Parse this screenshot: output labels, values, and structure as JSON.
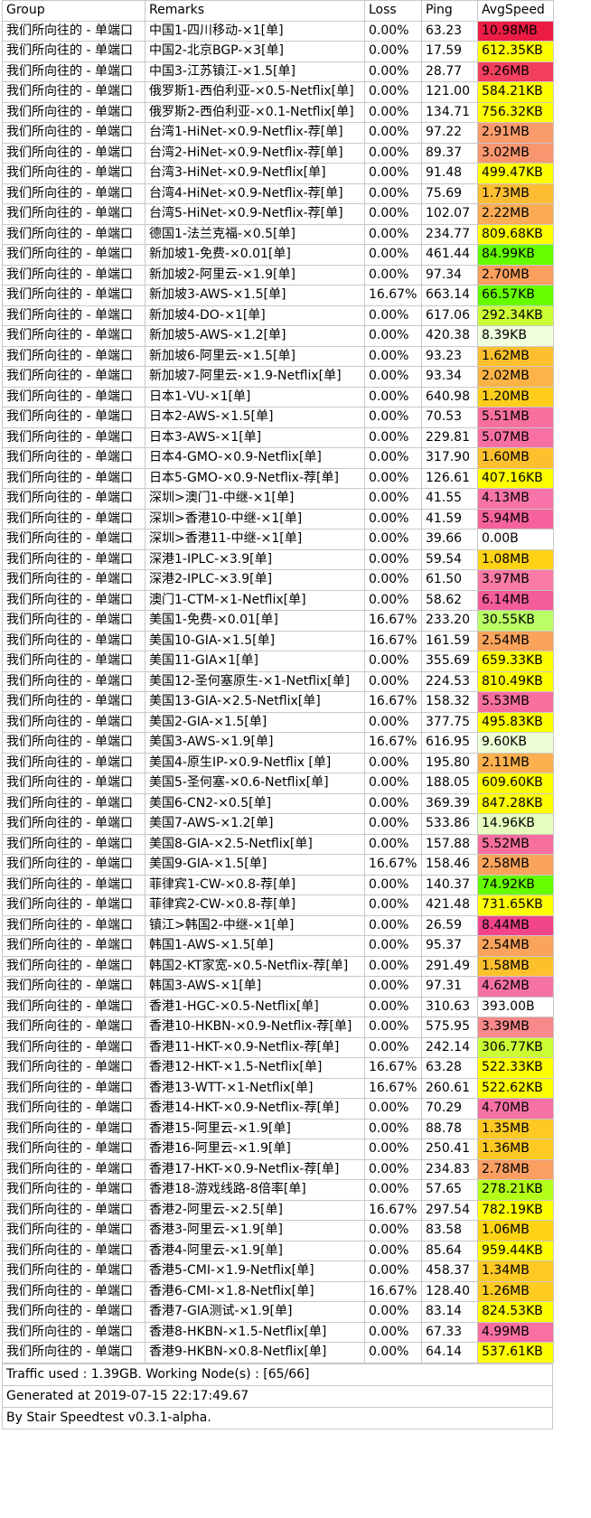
{
  "headers": {
    "group": "Group",
    "remarks": "Remarks",
    "loss": "Loss",
    "ping": "Ping",
    "speed": "AvgSpeed"
  },
  "group_name": "我们所向往的 - 单端口",
  "rows": [
    {
      "remarks": "中国1-四川移动-×1[单]",
      "loss": "0.00%",
      "ping": "63.23",
      "speed": "10.98MB",
      "color": "#ec1c44"
    },
    {
      "remarks": "中国2-北京BGP-×3[单]",
      "loss": "0.00%",
      "ping": "17.59",
      "speed": "612.35KB",
      "color": "#ffff00"
    },
    {
      "remarks": "中国3-江苏镇江-×1.5[单]",
      "loss": "0.00%",
      "ping": "28.77",
      "speed": "9.26MB",
      "color": "#f3405e"
    },
    {
      "remarks": "俄罗斯1-西伯利亚-×0.5-Netflix[单]",
      "loss": "0.00%",
      "ping": "121.00",
      "speed": "584.21KB",
      "color": "#ffff00"
    },
    {
      "remarks": "俄罗斯2-西伯利亚-×0.1-Netflix[单]",
      "loss": "0.00%",
      "ping": "134.71",
      "speed": "756.32KB",
      "color": "#ffff00"
    },
    {
      "remarks": "台湾1-HiNet-×0.9-Netflix-荐[单]",
      "loss": "0.00%",
      "ping": "97.22",
      "speed": "2.91MB",
      "color": "#fa9b6e"
    },
    {
      "remarks": "台湾2-HiNet-×0.9-Netflix-荐[单]",
      "loss": "0.00%",
      "ping": "89.37",
      "speed": "3.02MB",
      "color": "#f8966f"
    },
    {
      "remarks": "台湾3-HiNet-×0.9-Netflix[单]",
      "loss": "0.00%",
      "ping": "91.48",
      "speed": "499.47KB",
      "color": "#ffff00"
    },
    {
      "remarks": "台湾4-HiNet-×0.9-Netflix-荐[单]",
      "loss": "0.00%",
      "ping": "75.69",
      "speed": "1.73MB",
      "color": "#fdbd33"
    },
    {
      "remarks": "台湾5-HiNet-×0.9-Netflix-荐[单]",
      "loss": "0.00%",
      "ping": "102.07",
      "speed": "2.22MB",
      "color": "#fbac55"
    },
    {
      "remarks": "德国1-法兰克福-×0.5[单]",
      "loss": "0.00%",
      "ping": "234.77",
      "speed": "809.68KB",
      "color": "#ffff00"
    },
    {
      "remarks": "新加坡1-免费-×0.01[单]",
      "loss": "0.00%",
      "ping": "461.44",
      "speed": "84.99KB",
      "color": "#66ff00"
    },
    {
      "remarks": "新加坡2-阿里云-×1.9[单]",
      "loss": "0.00%",
      "ping": "97.34",
      "speed": "2.70MB",
      "color": "#faa05f"
    },
    {
      "remarks": "新加坡3-AWS-×1.5[单]",
      "loss": "16.67%",
      "ping": "663.14",
      "speed": "66.57KB",
      "color": "#66ff00"
    },
    {
      "remarks": "新加坡4-DO-×1[单]",
      "loss": "0.00%",
      "ping": "617.06",
      "speed": "292.34KB",
      "color": "#ccff33"
    },
    {
      "remarks": "新加坡5-AWS-×1.2[单]",
      "loss": "0.00%",
      "ping": "420.38",
      "speed": "8.39KB",
      "color": "#f0ffdd"
    },
    {
      "remarks": "新加坡6-阿里云-×1.5[单]",
      "loss": "0.00%",
      "ping": "93.23",
      "speed": "1.62MB",
      "color": "#fdbf2e"
    },
    {
      "remarks": "新加坡7-阿里云-×1.9-Netflix[单]",
      "loss": "0.00%",
      "ping": "93.34",
      "speed": "2.02MB",
      "color": "#fcb448"
    },
    {
      "remarks": "日本1-VU-×1[单]",
      "loss": "0.00%",
      "ping": "640.98",
      "speed": "1.20MB",
      "color": "#fecd1c"
    },
    {
      "remarks": "日本2-AWS-×1.5[单]",
      "loss": "0.00%",
      "ping": "70.53",
      "speed": "5.51MB",
      "color": "#f66f9e"
    },
    {
      "remarks": "日本3-AWS-×1[单]",
      "loss": "0.00%",
      "ping": "229.81",
      "speed": "5.07MB",
      "color": "#f770a1"
    },
    {
      "remarks": "日本4-GMO-×0.9-Netflix[单]",
      "loss": "0.00%",
      "ping": "317.90",
      "speed": "1.60MB",
      "color": "#fdbf2e"
    },
    {
      "remarks": "日本5-GMO-×0.9-Netflix-荐[单]",
      "loss": "0.00%",
      "ping": "126.61",
      "speed": "407.16KB",
      "color": "#ffff00"
    },
    {
      "remarks": "深圳>澳门1-中继-×1[单]",
      "loss": "0.00%",
      "ping": "41.55",
      "speed": "4.13MB",
      "color": "#f874a8"
    },
    {
      "remarks": "深圳>香港10-中继-×1[单]",
      "loss": "0.00%",
      "ping": "41.59",
      "speed": "5.94MB",
      "color": "#f5629c"
    },
    {
      "remarks": "深圳>香港11-中继-×1[单]",
      "loss": "0.00%",
      "ping": "39.66",
      "speed": "0.00B",
      "color": "#ffffff"
    },
    {
      "remarks": "深港1-IPLC-×3.9[单]",
      "loss": "0.00%",
      "ping": "59.54",
      "speed": "1.08MB",
      "color": "#fed316"
    },
    {
      "remarks": "深港2-IPLC-×3.9[单]",
      "loss": "0.00%",
      "ping": "61.50",
      "speed": "3.97MB",
      "color": "#f87ba5"
    },
    {
      "remarks": "澳门1-CTM-×1-Netflix[单]",
      "loss": "0.00%",
      "ping": "58.62",
      "speed": "6.14MB",
      "color": "#f45d99"
    },
    {
      "remarks": "美国1-免费-×0.01[单]",
      "loss": "16.67%",
      "ping": "233.20",
      "speed": "30.55KB",
      "color": "#bbff66"
    },
    {
      "remarks": "美国10-GIA-×1.5[单]",
      "loss": "16.67%",
      "ping": "161.59",
      "speed": "2.54MB",
      "color": "#faa35c"
    },
    {
      "remarks": "美国11-GIA×1[单]",
      "loss": "0.00%",
      "ping": "355.69",
      "speed": "659.33KB",
      "color": "#ffff00"
    },
    {
      "remarks": "美国12-圣何塞原生-×1-Netflix[单]",
      "loss": "0.00%",
      "ping": "224.53",
      "speed": "810.49KB",
      "color": "#ffff00"
    },
    {
      "remarks": "美国13-GIA-×2.5-Netflix[单]",
      "loss": "16.67%",
      "ping": "158.32",
      "speed": "5.53MB",
      "color": "#f66f9e"
    },
    {
      "remarks": "美国2-GIA-×1.5[单]",
      "loss": "0.00%",
      "ping": "377.75",
      "speed": "495.83KB",
      "color": "#ffff00"
    },
    {
      "remarks": "美国3-AWS-×1.9[单]",
      "loss": "16.67%",
      "ping": "616.95",
      "speed": "9.60KB",
      "color": "#eeffd6"
    },
    {
      "remarks": "美国4-原生IP-×0.9-Netflix [单]",
      "loss": "0.00%",
      "ping": "195.80",
      "speed": "2.11MB",
      "color": "#fcb04e"
    },
    {
      "remarks": "美国5-圣何塞-×0.6-Netflix[单]",
      "loss": "0.00%",
      "ping": "188.05",
      "speed": "609.60KB",
      "color": "#ffff00"
    },
    {
      "remarks": "美国6-CN2-×0.5[单]",
      "loss": "0.00%",
      "ping": "369.39",
      "speed": "847.28KB",
      "color": "#ffff00"
    },
    {
      "remarks": "美国7-AWS-×1.2[单]",
      "loss": "0.00%",
      "ping": "533.86",
      "speed": "14.96KB",
      "color": "#e6ffbf"
    },
    {
      "remarks": "美国8-GIA-×2.5-Netflix[单]",
      "loss": "0.00%",
      "ping": "157.88",
      "speed": "5.52MB",
      "color": "#f66f9e"
    },
    {
      "remarks": "美国9-GIA-×1.5[单]",
      "loss": "16.67%",
      "ping": "158.46",
      "speed": "2.58MB",
      "color": "#faa35c"
    },
    {
      "remarks": "菲律宾1-CW-×0.8-荐[单]",
      "loss": "0.00%",
      "ping": "140.37",
      "speed": "74.92KB",
      "color": "#66ff00"
    },
    {
      "remarks": "菲律宾2-CW-×0.8-荐[单]",
      "loss": "0.00%",
      "ping": "421.48",
      "speed": "731.65KB",
      "color": "#ffff00"
    },
    {
      "remarks": "镇江>韩国2-中继-×1[单]",
      "loss": "0.00%",
      "ping": "26.59",
      "speed": "8.44MB",
      "color": "#f2448a"
    },
    {
      "remarks": "韩国1-AWS-×1.5[单]",
      "loss": "0.00%",
      "ping": "95.37",
      "speed": "2.54MB",
      "color": "#faa35c"
    },
    {
      "remarks": "韩国2-KT家宽-×0.5-Netflix-荐[单]",
      "loss": "0.00%",
      "ping": "291.49",
      "speed": "1.58MB",
      "color": "#fdc02d"
    },
    {
      "remarks": "韩国3-AWS-×1[单]",
      "loss": "0.00%",
      "ping": "97.31",
      "speed": "4.62MB",
      "color": "#f772a4"
    },
    {
      "remarks": "香港1-HGC-×0.5-Netflix[单]",
      "loss": "0.00%",
      "ping": "310.63",
      "speed": "393.00B",
      "color": "#ffffff"
    },
    {
      "remarks": "香港10-HKBN-×0.9-Netflix-荐[单]",
      "loss": "0.00%",
      "ping": "575.95",
      "speed": "3.39MB",
      "color": "#f8888a"
    },
    {
      "remarks": "香港11-HKT-×0.9-Netflix-荐[单]",
      "loss": "0.00%",
      "ping": "242.14",
      "speed": "306.77KB",
      "color": "#ccff33"
    },
    {
      "remarks": "香港12-HKT-×1.5-Netflix[单]",
      "loss": "16.67%",
      "ping": "63.28",
      "speed": "522.33KB",
      "color": "#ffff00"
    },
    {
      "remarks": "香港13-WTT-×1-Netflix[单]",
      "loss": "16.67%",
      "ping": "260.61",
      "speed": "522.62KB",
      "color": "#ffff00"
    },
    {
      "remarks": "香港14-HKT-×0.9-Netflix-荐[单]",
      "loss": "0.00%",
      "ping": "70.29",
      "speed": "4.70MB",
      "color": "#f772a4"
    },
    {
      "remarks": "香港15-阿里云-×1.9[单]",
      "loss": "0.00%",
      "ping": "88.78",
      "speed": "1.35MB",
      "color": "#fec923"
    },
    {
      "remarks": "香港16-阿里云-×1.9[单]",
      "loss": "0.00%",
      "ping": "250.41",
      "speed": "1.36MB",
      "color": "#fec923"
    },
    {
      "remarks": "香港17-HKT-×0.9-Netflix-荐[单]",
      "loss": "0.00%",
      "ping": "234.83",
      "speed": "2.78MB",
      "color": "#fa9e62"
    },
    {
      "remarks": "香港18-游戏线路-8倍率[单]",
      "loss": "0.00%",
      "ping": "57.65",
      "speed": "278.21KB",
      "color": "#b3ff1a"
    },
    {
      "remarks": "香港2-阿里云-×2.5[单]",
      "loss": "16.67%",
      "ping": "297.54",
      "speed": "782.19KB",
      "color": "#ffff00"
    },
    {
      "remarks": "香港3-阿里云-×1.9[单]",
      "loss": "0.00%",
      "ping": "83.58",
      "speed": "1.06MB",
      "color": "#fed316"
    },
    {
      "remarks": "香港4-阿里云-×1.9[单]",
      "loss": "0.00%",
      "ping": "85.64",
      "speed": "959.44KB",
      "color": "#ffff00"
    },
    {
      "remarks": "香港5-CMI-×1.9-Netflix[单]",
      "loss": "0.00%",
      "ping": "458.37",
      "speed": "1.34MB",
      "color": "#fec923"
    },
    {
      "remarks": "香港6-CMI-×1.8-Netflix[单]",
      "loss": "16.67%",
      "ping": "128.40",
      "speed": "1.26MB",
      "color": "#fecb20"
    },
    {
      "remarks": "香港7-GIA测试-×1.9[单]",
      "loss": "0.00%",
      "ping": "83.14",
      "speed": "824.53KB",
      "color": "#ffff00"
    },
    {
      "remarks": "香港8-HKBN-×1.5-Netflix[单]",
      "loss": "0.00%",
      "ping": "67.33",
      "speed": "4.99MB",
      "color": "#f770a1"
    },
    {
      "remarks": "香港9-HKBN-×0.8-Netflix[单]",
      "loss": "0.00%",
      "ping": "64.14",
      "speed": "537.61KB",
      "color": "#ffff00"
    }
  ],
  "footer": {
    "traffic": "Traffic used : 1.39GB. Working Node(s) : [65/66]",
    "generated": "Generated at 2019-07-15 22:17:49.67",
    "by": "By Stair Speedtest v0.3.1-alpha."
  }
}
